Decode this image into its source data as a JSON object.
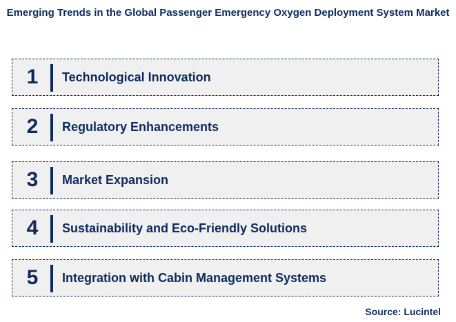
{
  "title": "Emerging Trends in the Global Passenger Emergency Oxygen Deployment System Market",
  "items": [
    {
      "number": "1",
      "label": "Technological Innovation"
    },
    {
      "number": "2",
      "label": "Regulatory Enhancements"
    },
    {
      "number": "3",
      "label": "Market Expansion"
    },
    {
      "number": "4",
      "label": "Sustainability and Eco-Friendly Solutions"
    },
    {
      "number": "5",
      "label": "Integration with Cabin Management Systems"
    }
  ],
  "source": "Source: Lucintel"
}
